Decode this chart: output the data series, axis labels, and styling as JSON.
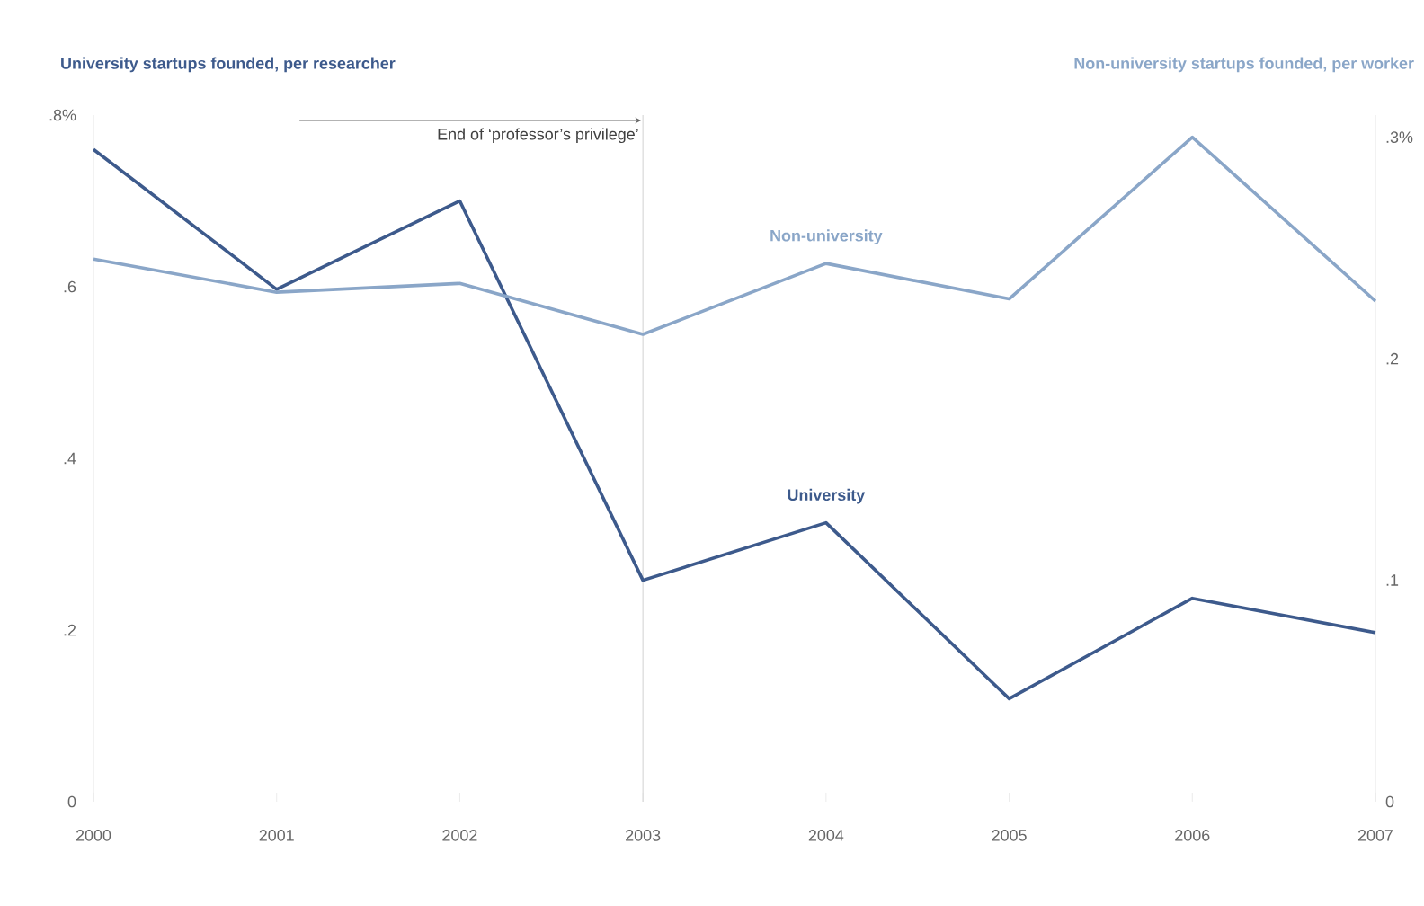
{
  "chart_data": {
    "type": "line",
    "ylabel": "University startups founded, per researcher",
    "y2label": "Non-university startups founded, per worker",
    "x": [
      2000,
      2001,
      2002,
      2003,
      2004,
      2005,
      2006,
      2007
    ],
    "xlim": [
      2000,
      2007
    ],
    "xticks": [
      2000,
      2001,
      2002,
      2003,
      2004,
      2005,
      2006,
      2007
    ],
    "ylim": [
      0,
      0.8
    ],
    "yticks": [
      {
        "value": 0,
        "label": "0"
      },
      {
        "value": 0.2,
        "label": ".2"
      },
      {
        "value": 0.4,
        "label": ".4"
      },
      {
        "value": 0.6,
        "label": ".6"
      },
      {
        "value": 0.8,
        "label": ".8%"
      }
    ],
    "y2lim": [
      0,
      0.31
    ],
    "y2ticks": [
      {
        "value": 0,
        "label": "0"
      },
      {
        "value": 0.1,
        "label": ".1"
      },
      {
        "value": 0.2,
        "label": ".2"
      },
      {
        "value": 0.3,
        "label": ".3%"
      }
    ],
    "series": [
      {
        "name": "University",
        "color": "#3d5a8c",
        "values": [
          0.76,
          0.597,
          0.7,
          0.258,
          0.325,
          0.12,
          0.237,
          0.197
        ]
      },
      {
        "name": "Non-university",
        "color": "#8aa6c8",
        "axis": "y2",
        "values": [
          0.245,
          0.23,
          0.234,
          0.211,
          0.243,
          0.227,
          0.3,
          0.226
        ]
      }
    ],
    "ref_lines": [
      {
        "axis": "x",
        "value": 2003,
        "label": "End of ‘professor’s privilege’"
      }
    ]
  }
}
